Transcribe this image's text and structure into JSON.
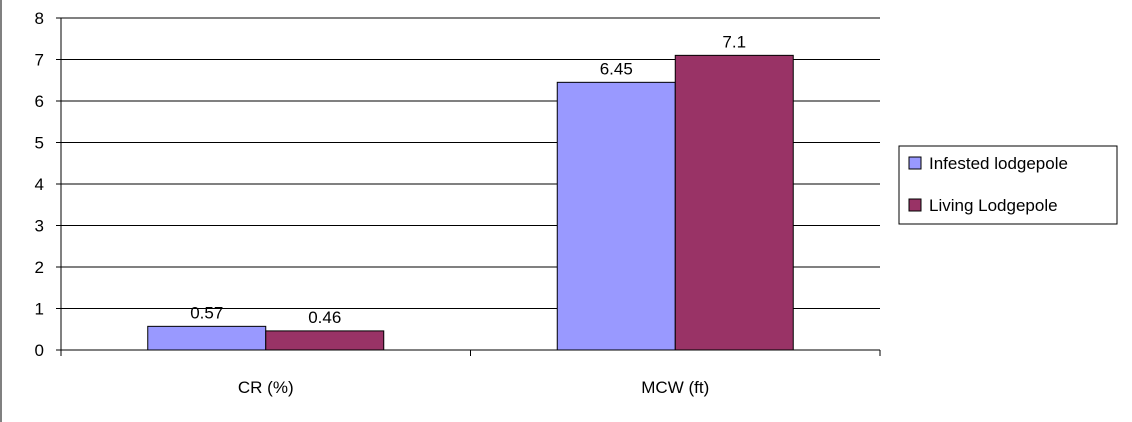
{
  "chart_data": {
    "type": "bar",
    "categories": [
      "CR (%)",
      "MCW (ft)"
    ],
    "series": [
      {
        "name": "Infested lodgepole",
        "values": [
          0.57,
          6.45
        ],
        "labels": [
          "0.57",
          "6.45"
        ],
        "color": "#9999FF"
      },
      {
        "name": "Living Lodgepole",
        "values": [
          0.46,
          7.1
        ],
        "labels": [
          "0.46",
          "7.1"
        ],
        "color": "#993366"
      }
    ],
    "ylim": [
      0,
      8
    ],
    "yticks": [
      "0",
      "1",
      "2",
      "3",
      "4",
      "5",
      "6",
      "7",
      "8"
    ],
    "grid": true,
    "legend_position": "right"
  }
}
